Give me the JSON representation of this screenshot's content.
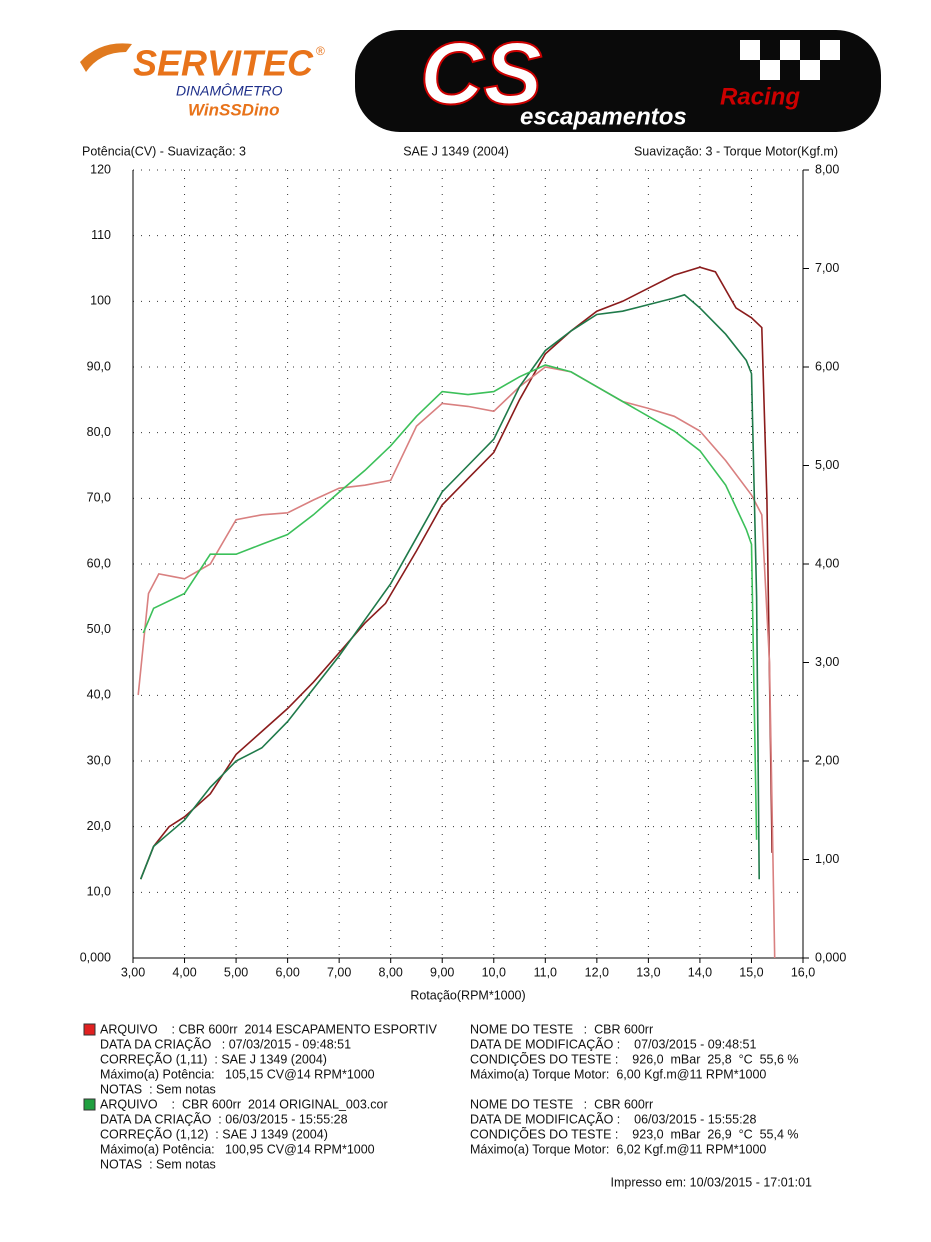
{
  "header": {
    "brand": "SERVITEC",
    "brand_mark": "®",
    "brand_sub": "DINAMÔMETRO",
    "software": "WinSSDino",
    "logo_letters": "CS",
    "logo_racing": "Racing",
    "logo_sub": "escapamentos"
  },
  "chart_data": {
    "type": "line",
    "left_title": "Potência(CV) - Suavização: 3",
    "title": "SAE J 1349 (2004)",
    "right_title": "Suavização: 3 - Torque Motor(Kgf.m)",
    "x_label": "Rotação(RPM*1000)",
    "xlim": [
      3,
      16
    ],
    "xticks": [
      {
        "value": 3,
        "label": "3,00"
      },
      {
        "value": 4,
        "label": "4,00"
      },
      {
        "value": 5,
        "label": "5,00"
      },
      {
        "value": 6,
        "label": "6,00"
      },
      {
        "value": 7,
        "label": "7,00"
      },
      {
        "value": 8,
        "label": "8,00"
      },
      {
        "value": 9,
        "label": "9,00"
      },
      {
        "value": 10,
        "label": "10,0"
      },
      {
        "value": 11,
        "label": "11,0"
      },
      {
        "value": 12,
        "label": "12,0"
      },
      {
        "value": 13,
        "label": "13,0"
      },
      {
        "value": 14,
        "label": "14,0"
      },
      {
        "value": 15,
        "label": "15,0"
      },
      {
        "value": 16,
        "label": "16,0"
      }
    ],
    "ylim": [
      0,
      120
    ],
    "yticks": [
      {
        "value": 0,
        "label": "0,000"
      },
      {
        "value": 10,
        "label": "10,0"
      },
      {
        "value": 20,
        "label": "20,0"
      },
      {
        "value": 30,
        "label": "30,0"
      },
      {
        "value": 40,
        "label": "40,0"
      },
      {
        "value": 50,
        "label": "50,0"
      },
      {
        "value": 60,
        "label": "60,0"
      },
      {
        "value": 70,
        "label": "70,0"
      },
      {
        "value": 80,
        "label": "80,0"
      },
      {
        "value": 90,
        "label": "90,0"
      },
      {
        "value": 100,
        "label": "100"
      },
      {
        "value": 110,
        "label": "110"
      },
      {
        "value": 120,
        "label": "120"
      }
    ],
    "y2lim": [
      0,
      8
    ],
    "y2ticks": [
      {
        "value": 0,
        "label": "0,000"
      },
      {
        "value": 1,
        "label": "1,00"
      },
      {
        "value": 2,
        "label": "2,00"
      },
      {
        "value": 3,
        "label": "3,00"
      },
      {
        "value": 4,
        "label": "4,00"
      },
      {
        "value": 5,
        "label": "5,00"
      },
      {
        "value": 6,
        "label": "6,00"
      },
      {
        "value": 7,
        "label": "7,00"
      },
      {
        "value": 8,
        "label": "8,00"
      }
    ],
    "grid": true,
    "series": [
      {
        "color": "#8b1c1c",
        "axis": "y",
        "x": [
          3.15,
          3.4,
          3.7,
          4.0,
          4.5,
          5.0,
          5.5,
          6.0,
          6.5,
          7.0,
          7.5,
          7.9,
          8.5,
          9.0,
          9.5,
          10.0,
          10.5,
          11.0,
          11.5,
          12.0,
          12.5,
          13.0,
          13.5,
          14.0,
          14.3,
          14.7,
          15.0,
          15.2,
          15.3,
          15.4
        ],
        "values": [
          12,
          17,
          20,
          21.5,
          25,
          31,
          34.5,
          38,
          42,
          46.5,
          51,
          54,
          62,
          69,
          73,
          77,
          85,
          92,
          95.5,
          98.5,
          100,
          102,
          104,
          105.2,
          104.5,
          99,
          97.5,
          96,
          70,
          16
        ]
      },
      {
        "color": "#d98080",
        "axis": "y2",
        "x": [
          3.1,
          3.3,
          3.5,
          3.8,
          4.0,
          4.5,
          5.0,
          5.5,
          6.0,
          6.5,
          7.0,
          7.5,
          8.0,
          8.5,
          9.0,
          9.5,
          10.0,
          10.5,
          11.0,
          11.5,
          12.0,
          12.5,
          13.0,
          13.5,
          14.0,
          14.5,
          15.0,
          15.2,
          15.35,
          15.45
        ],
        "values": [
          2.67,
          3.7,
          3.9,
          3.87,
          3.85,
          4.0,
          4.45,
          4.5,
          4.52,
          4.65,
          4.77,
          4.8,
          4.85,
          5.4,
          5.63,
          5.6,
          5.55,
          5.8,
          6.0,
          5.95,
          5.8,
          5.65,
          5.58,
          5.5,
          5.35,
          5.05,
          4.7,
          4.5,
          3.0,
          0
        ]
      },
      {
        "color": "#1f7a4a",
        "axis": "y",
        "x": [
          3.15,
          3.4,
          3.7,
          4.0,
          4.5,
          5.0,
          5.5,
          6.0,
          6.5,
          7.0,
          7.5,
          8.0,
          8.5,
          9.0,
          9.5,
          10.0,
          10.5,
          11.0,
          11.5,
          12.0,
          12.5,
          13.0,
          13.5,
          13.7,
          14.0,
          14.5,
          14.9,
          15.0,
          15.1,
          15.15
        ],
        "values": [
          12,
          17,
          19,
          21,
          26,
          30,
          32,
          36,
          41,
          46,
          51.5,
          57,
          64,
          71,
          75,
          79,
          87,
          92.5,
          95.5,
          98,
          98.5,
          99.5,
          100.5,
          101,
          99,
          95,
          91,
          89,
          55,
          12
        ]
      },
      {
        "color": "#3cc05a",
        "axis": "y2",
        "x": [
          3.2,
          3.4,
          4.0,
          4.5,
          5.0,
          5.5,
          6.0,
          6.5,
          7.0,
          7.5,
          8.0,
          8.5,
          9.0,
          9.5,
          10.0,
          10.5,
          11.0,
          11.5,
          12.0,
          12.5,
          13.0,
          13.5,
          14.0,
          14.5,
          14.9,
          15.0,
          15.1
        ],
        "values": [
          3.3,
          3.55,
          3.7,
          4.1,
          4.1,
          4.2,
          4.3,
          4.5,
          4.73,
          4.95,
          5.2,
          5.5,
          5.75,
          5.72,
          5.75,
          5.9,
          6.02,
          5.95,
          5.8,
          5.65,
          5.5,
          5.35,
          5.15,
          4.8,
          4.35,
          4.2,
          1.2
        ]
      }
    ]
  },
  "records": [
    {
      "color": "#e02020",
      "left": [
        "ARQUIVO    : CBR 600rr  2014 ESCAPAMENTO ESPORTIV",
        "DATA DA CRIAÇÃO   : 07/03/2015 - 09:48:51",
        "CORREÇÃO (1,11)  : SAE J 1349 (2004)",
        "Máximo(a) Potência:   105,15 CV@14 RPM*1000",
        "NOTAS  : Sem notas"
      ],
      "right": [
        "NOME DO TESTE   :  CBR 600rr",
        "DATA DE MODIFICAÇÃO :    07/03/2015 - 09:48:51",
        "CONDIÇÕES DO TESTE :    926,0  mBar  25,8  °C  55,6 %",
        "Máximo(a) Torque Motor:  6,00 Kgf.m@11 RPM*1000"
      ]
    },
    {
      "color": "#20a040",
      "left": [
        "ARQUIVO    :  CBR 600rr  2014 ORIGINAL_003.cor",
        "DATA DA CRIAÇÃO  : 06/03/2015 - 15:55:28",
        "CORREÇÃO (1,12)  : SAE J 1349 (2004)",
        "Máximo(a) Potência:   100,95 CV@14 RPM*1000",
        "NOTAS  : Sem notas"
      ],
      "right": [
        "NOME DO TESTE   :  CBR 600rr",
        "DATA DE MODIFICAÇÃO :    06/03/2015 - 15:55:28",
        "CONDIÇÕES DO TESTE :    923,0  mBar  26,9  °C  55,4 %",
        "Máximo(a) Torque Motor:  6,02 Kgf.m@11 RPM*1000"
      ]
    }
  ],
  "footer": "Impresso em: 10/03/2015 - 17:01:01"
}
